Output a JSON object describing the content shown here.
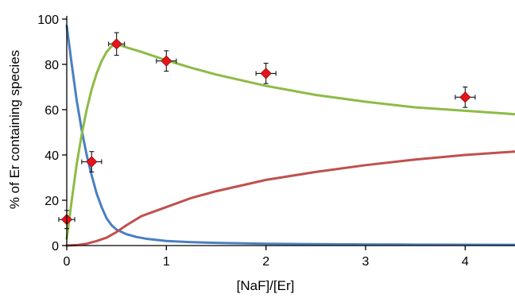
{
  "chart_data": {
    "type": "line",
    "title": "",
    "xlabel": "[NaF]/[Er]",
    "ylabel": "% of Er containing species",
    "xlim": [
      0,
      4.5
    ],
    "ylim": [
      0,
      100
    ],
    "x_ticks": [
      0,
      1,
      2,
      3,
      4
    ],
    "y_ticks": [
      0,
      20,
      40,
      60,
      80,
      100
    ],
    "grid": false,
    "legend": "none",
    "series": [
      {
        "color": "#4a7fc1",
        "x": [
          0,
          0.05,
          0.1,
          0.15,
          0.2,
          0.25,
          0.3,
          0.35,
          0.4,
          0.45,
          0.5,
          0.6,
          0.7,
          0.8,
          1.0,
          1.25,
          1.5,
          2.0,
          2.5,
          3.0,
          3.5,
          4.0,
          4.5
        ],
        "y": [
          97,
          80,
          64,
          51,
          40,
          31,
          23,
          17,
          12,
          9,
          7,
          5,
          3.8,
          3,
          2,
          1.5,
          1.2,
          0.8,
          0.6,
          0.5,
          0.4,
          0.35,
          0.3
        ]
      },
      {
        "color": "#8dbb45",
        "x": [
          0,
          0.05,
          0.1,
          0.15,
          0.2,
          0.25,
          0.3,
          0.35,
          0.4,
          0.45,
          0.5,
          0.6,
          0.75,
          1.0,
          1.25,
          1.5,
          2.0,
          2.5,
          3.0,
          3.5,
          4.0,
          4.5
        ],
        "y": [
          3,
          20,
          36,
          49,
          60,
          69,
          76,
          81.5,
          85.5,
          88,
          89,
          87.5,
          85.5,
          81.8,
          78.5,
          75.5,
          70.5,
          66.5,
          63.5,
          61,
          59.5,
          58
        ]
      },
      {
        "color": "#c0504d",
        "x": [
          0,
          0.1,
          0.2,
          0.3,
          0.4,
          0.5,
          0.6,
          0.75,
          1.0,
          1.25,
          1.5,
          2.0,
          2.5,
          3.0,
          3.5,
          4.0,
          4.5
        ],
        "y": [
          0,
          0.2,
          0.8,
          2,
          3.5,
          6,
          9,
          13,
          17,
          21,
          24,
          29,
          32.5,
          35.5,
          38,
          40,
          41.5
        ]
      }
    ],
    "points": {
      "color": "#e8131b",
      "x": [
        0,
        0.25,
        0.5,
        1.0,
        2.0,
        4.0
      ],
      "y": [
        11.5,
        37,
        89,
        81.5,
        76,
        65.5
      ],
      "x_err": [
        0.08,
        0.1,
        0.08,
        0.1,
        0.1,
        0.1
      ],
      "y_err": [
        4,
        4.5,
        5,
        4.5,
        4.5,
        4.5
      ]
    }
  }
}
